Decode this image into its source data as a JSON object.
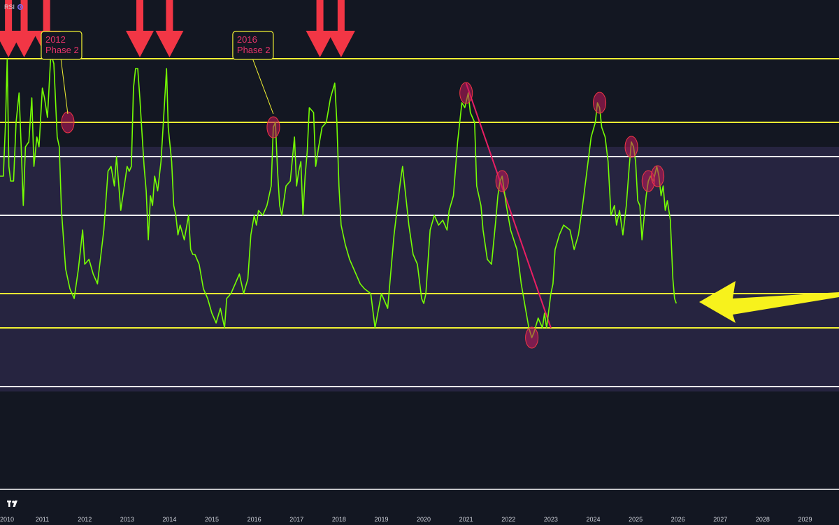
{
  "indicator": {
    "name": "RSI"
  },
  "colors": {
    "background": "#131722",
    "band_fill": "#262440",
    "rsi_line": "#76ff03",
    "level_yellow": "#f2f233",
    "level_white": "#ffffff",
    "arrow_red": "#f23645",
    "arrow_yellow": "#f7f21c",
    "trendline": "#e91e63",
    "highlight": "#c2185b"
  },
  "chart_data": {
    "type": "line",
    "x_axis": {
      "ticks": [
        "2010",
        "2011",
        "2012",
        "2013",
        "2014",
        "2015",
        "2016",
        "2017",
        "2018",
        "2019",
        "2020",
        "2021",
        "2022",
        "2023",
        "2024",
        "2025",
        "2026",
        "2027",
        "2028",
        "2029"
      ],
      "range": [
        2010,
        2029.8
      ]
    },
    "y_axis": {
      "range": [
        0,
        100
      ],
      "labels_visible": false
    },
    "band": [
      20,
      70
    ],
    "levels": [
      {
        "value": 75,
        "color": "yellow"
      },
      {
        "value": 68,
        "color": "white"
      },
      {
        "value": 88,
        "color": "yellow"
      },
      {
        "value": 56,
        "color": "white"
      },
      {
        "value": 40,
        "color": "yellow"
      },
      {
        "value": 33,
        "color": "yellow"
      },
      {
        "value": 21,
        "color": "white"
      }
    ],
    "series": [
      {
        "points": [
          [
            2010.0,
            64
          ],
          [
            2010.08,
            64
          ],
          [
            2010.13,
            75
          ],
          [
            2010.17,
            88
          ],
          [
            2010.21,
            66
          ],
          [
            2010.25,
            63
          ],
          [
            2010.32,
            63
          ],
          [
            2010.38,
            75
          ],
          [
            2010.45,
            81
          ],
          [
            2010.5,
            70
          ],
          [
            2010.55,
            58
          ],
          [
            2010.6,
            70
          ],
          [
            2010.68,
            71
          ],
          [
            2010.75,
            80
          ],
          [
            2010.8,
            66
          ],
          [
            2010.87,
            72
          ],
          [
            2010.92,
            70
          ],
          [
            2011.0,
            82
          ],
          [
            2011.05,
            80
          ],
          [
            2011.12,
            76
          ],
          [
            2011.2,
            89
          ],
          [
            2011.27,
            87
          ],
          [
            2011.35,
            72
          ],
          [
            2011.4,
            70
          ],
          [
            2011.45,
            57
          ],
          [
            2011.55,
            45
          ],
          [
            2011.65,
            41
          ],
          [
            2011.75,
            39
          ],
          [
            2011.85,
            45
          ],
          [
            2011.95,
            53
          ],
          [
            2012.0,
            46
          ],
          [
            2012.1,
            47
          ],
          [
            2012.2,
            44
          ],
          [
            2012.3,
            42
          ],
          [
            2012.45,
            53
          ],
          [
            2012.55,
            65
          ],
          [
            2012.62,
            66
          ],
          [
            2012.7,
            62
          ],
          [
            2012.75,
            68
          ],
          [
            2012.85,
            57
          ],
          [
            2012.95,
            63
          ],
          [
            2013.0,
            66
          ],
          [
            2013.05,
            65
          ],
          [
            2013.1,
            66
          ],
          [
            2013.15,
            82
          ],
          [
            2013.2,
            86
          ],
          [
            2013.25,
            86
          ],
          [
            2013.3,
            80
          ],
          [
            2013.35,
            73
          ],
          [
            2013.4,
            66
          ],
          [
            2013.45,
            61
          ],
          [
            2013.5,
            51
          ],
          [
            2013.55,
            60
          ],
          [
            2013.6,
            58
          ],
          [
            2013.65,
            64
          ],
          [
            2013.72,
            61
          ],
          [
            2013.8,
            67
          ],
          [
            2013.87,
            77
          ],
          [
            2013.93,
            86
          ],
          [
            2013.97,
            74
          ],
          [
            2014.05,
            67
          ],
          [
            2014.1,
            58
          ],
          [
            2014.15,
            56
          ],
          [
            2014.2,
            52
          ],
          [
            2014.25,
            54
          ],
          [
            2014.35,
            51
          ],
          [
            2014.45,
            56
          ],
          [
            2014.5,
            49
          ],
          [
            2014.55,
            48
          ],
          [
            2014.6,
            48
          ],
          [
            2014.7,
            46
          ],
          [
            2014.8,
            41
          ],
          [
            2014.9,
            39
          ],
          [
            2015.0,
            36
          ],
          [
            2015.05,
            35
          ],
          [
            2015.1,
            34
          ],
          [
            2015.2,
            37
          ],
          [
            2015.3,
            33
          ],
          [
            2015.35,
            39
          ],
          [
            2015.45,
            40
          ],
          [
            2015.55,
            42
          ],
          [
            2015.65,
            44
          ],
          [
            2015.75,
            40
          ],
          [
            2015.85,
            43
          ],
          [
            2015.92,
            52
          ],
          [
            2016.0,
            56
          ],
          [
            2016.05,
            54
          ],
          [
            2016.1,
            57
          ],
          [
            2016.2,
            56
          ],
          [
            2016.3,
            58
          ],
          [
            2016.4,
            62
          ],
          [
            2016.45,
            74
          ],
          [
            2016.5,
            75
          ],
          [
            2016.55,
            65
          ],
          [
            2016.6,
            58
          ],
          [
            2016.65,
            56
          ],
          [
            2016.75,
            62
          ],
          [
            2016.85,
            63
          ],
          [
            2016.95,
            72
          ],
          [
            2017.0,
            62
          ],
          [
            2017.05,
            65
          ],
          [
            2017.1,
            67
          ],
          [
            2017.15,
            56
          ],
          [
            2017.2,
            64
          ],
          [
            2017.25,
            69
          ],
          [
            2017.3,
            78
          ],
          [
            2017.4,
            77
          ],
          [
            2017.45,
            66
          ],
          [
            2017.52,
            70
          ],
          [
            2017.6,
            74
          ],
          [
            2017.7,
            75
          ],
          [
            2017.8,
            80
          ],
          [
            2017.9,
            83
          ],
          [
            2017.95,
            75
          ],
          [
            2018.0,
            62
          ],
          [
            2018.05,
            54
          ],
          [
            2018.15,
            50
          ],
          [
            2018.25,
            47
          ],
          [
            2018.35,
            45
          ],
          [
            2018.5,
            42
          ],
          [
            2018.6,
            41
          ],
          [
            2018.75,
            40
          ],
          [
            2018.85,
            33
          ],
          [
            2019.0,
            40
          ],
          [
            2019.15,
            37
          ],
          [
            2019.3,
            52
          ],
          [
            2019.45,
            63
          ],
          [
            2019.5,
            66
          ],
          [
            2019.55,
            62
          ],
          [
            2019.65,
            54
          ],
          [
            2019.75,
            48
          ],
          [
            2019.85,
            46
          ],
          [
            2019.95,
            39
          ],
          [
            2020.0,
            38
          ],
          [
            2020.05,
            40
          ],
          [
            2020.15,
            53
          ],
          [
            2020.25,
            56
          ],
          [
            2020.35,
            54
          ],
          [
            2020.45,
            55
          ],
          [
            2020.55,
            53
          ],
          [
            2020.6,
            57
          ],
          [
            2020.7,
            60
          ],
          [
            2020.8,
            71
          ],
          [
            2020.9,
            79
          ],
          [
            2020.97,
            78
          ],
          [
            2021.05,
            81
          ],
          [
            2021.1,
            77
          ],
          [
            2021.2,
            75
          ],
          [
            2021.25,
            62
          ],
          [
            2021.35,
            58
          ],
          [
            2021.4,
            53
          ],
          [
            2021.5,
            47
          ],
          [
            2021.6,
            46
          ],
          [
            2021.7,
            55
          ],
          [
            2021.75,
            60
          ],
          [
            2021.8,
            63
          ],
          [
            2021.85,
            64
          ],
          [
            2021.95,
            58
          ],
          [
            2022.05,
            53
          ],
          [
            2022.2,
            49
          ],
          [
            2022.3,
            42
          ],
          [
            2022.4,
            37
          ],
          [
            2022.48,
            33
          ],
          [
            2022.55,
            31
          ],
          [
            2022.6,
            32
          ],
          [
            2022.7,
            35
          ],
          [
            2022.8,
            33
          ],
          [
            2022.85,
            36
          ],
          [
            2022.9,
            33
          ],
          [
            2023.0,
            40
          ],
          [
            2023.05,
            42
          ],
          [
            2023.1,
            49
          ],
          [
            2023.2,
            52
          ],
          [
            2023.3,
            54
          ],
          [
            2023.45,
            53
          ],
          [
            2023.55,
            49
          ],
          [
            2023.65,
            52
          ],
          [
            2023.75,
            58
          ],
          [
            2023.85,
            65
          ],
          [
            2023.95,
            72
          ],
          [
            2024.05,
            75
          ],
          [
            2024.1,
            79
          ],
          [
            2024.15,
            78
          ],
          [
            2024.2,
            74
          ],
          [
            2024.28,
            72
          ],
          [
            2024.35,
            67
          ],
          [
            2024.42,
            56
          ],
          [
            2024.5,
            58
          ],
          [
            2024.55,
            54
          ],
          [
            2024.62,
            57
          ],
          [
            2024.7,
            52
          ],
          [
            2024.78,
            58
          ],
          [
            2024.85,
            66
          ],
          [
            2024.9,
            71
          ],
          [
            2024.95,
            70
          ],
          [
            2025.0,
            67
          ],
          [
            2025.05,
            59
          ],
          [
            2025.1,
            58
          ],
          [
            2025.15,
            51
          ],
          [
            2025.25,
            60
          ],
          [
            2025.3,
            63
          ],
          [
            2025.35,
            64
          ],
          [
            2025.42,
            63
          ],
          [
            2025.5,
            66
          ],
          [
            2025.55,
            64
          ],
          [
            2025.6,
            60
          ],
          [
            2025.65,
            62
          ],
          [
            2025.7,
            57
          ],
          [
            2025.75,
            59
          ],
          [
            2025.82,
            55
          ],
          [
            2025.88,
            43
          ],
          [
            2025.92,
            39
          ],
          [
            2025.96,
            38
          ]
        ]
      }
    ],
    "annotations": [
      {
        "type": "callout",
        "lines": [
          "2012",
          "Phase 2"
        ],
        "target": [
          2011.6,
          75
        ]
      },
      {
        "type": "callout",
        "lines": [
          "2016",
          "Phase 2"
        ],
        "target": [
          2016.45,
          75
        ]
      },
      {
        "type": "trendline",
        "from": [
          2021.0,
          83
        ],
        "to": [
          2023.0,
          33
        ]
      },
      {
        "type": "highlight",
        "at": [
          2011.6,
          75
        ]
      },
      {
        "type": "highlight",
        "at": [
          2016.45,
          74
        ]
      },
      {
        "type": "highlight",
        "at": [
          2021.0,
          81
        ]
      },
      {
        "type": "highlight",
        "at": [
          2021.85,
          63
        ]
      },
      {
        "type": "highlight",
        "at": [
          2022.55,
          31
        ]
      },
      {
        "type": "highlight",
        "at": [
          2024.15,
          79
        ]
      },
      {
        "type": "highlight",
        "at": [
          2024.9,
          70
        ]
      },
      {
        "type": "highlight",
        "at": [
          2025.3,
          63
        ]
      },
      {
        "type": "highlight",
        "at": [
          2025.52,
          64
        ]
      },
      {
        "type": "down-arrow",
        "at": [
          2010.2,
          88
        ]
      },
      {
        "type": "down-arrow",
        "at": [
          2010.57,
          88
        ]
      },
      {
        "type": "down-arrow",
        "at": [
          2011.1,
          88
        ]
      },
      {
        "type": "down-arrow",
        "at": [
          2013.3,
          88
        ]
      },
      {
        "type": "down-arrow",
        "at": [
          2014.0,
          88
        ]
      },
      {
        "type": "down-arrow",
        "at": [
          2017.55,
          88
        ]
      },
      {
        "type": "down-arrow",
        "at": [
          2018.05,
          88
        ]
      },
      {
        "type": "left-arrow",
        "at": [
          2026.5,
          40
        ]
      }
    ],
    "grid": false,
    "legend": "none"
  }
}
